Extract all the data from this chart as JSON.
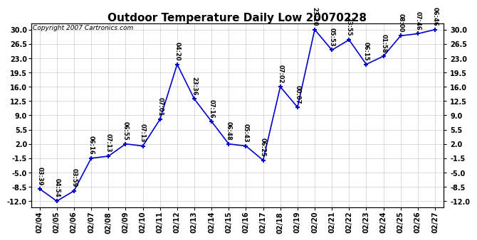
{
  "title": "Outdoor Temperature Daily Low 20070228",
  "copyright": "Copyright 2007 Cartronics.com",
  "x_labels": [
    "02/04",
    "02/05",
    "02/06",
    "02/07",
    "02/08",
    "02/09",
    "02/10",
    "02/11",
    "02/12",
    "02/13",
    "02/14",
    "02/15",
    "02/16",
    "02/17",
    "02/18",
    "02/19",
    "02/20",
    "02/21",
    "02/22",
    "02/23",
    "02/24",
    "02/25",
    "02/26",
    "02/27"
  ],
  "y_values": [
    -9.0,
    -12.0,
    -9.5,
    -1.5,
    -1.0,
    2.0,
    1.5,
    8.0,
    21.5,
    13.0,
    7.5,
    2.0,
    1.5,
    -2.0,
    16.0,
    11.0,
    30.0,
    25.0,
    27.5,
    21.5,
    23.5,
    28.5,
    29.0,
    30.0
  ],
  "point_labels": [
    "03:39",
    "04:54",
    "03:59",
    "06:16",
    "07:13",
    "06:55",
    "07:13",
    "07:01",
    "04:20",
    "23:36",
    "07:16",
    "06:48",
    "05:43",
    "06:25",
    "07:02",
    "00:07",
    "23:10",
    "05:53",
    "23:55",
    "06:15",
    "01:58",
    "08:00",
    "07:46",
    "06:46"
  ],
  "line_color": "#0000CC",
  "marker_color": "#0000CC",
  "bg_color": "#FFFFFF",
  "plot_bg_color": "#FFFFFF",
  "grid_color": "#CCCCCC",
  "ylim_min": -13.5,
  "ylim_max": 31.5,
  "yticks": [
    30.0,
    26.5,
    23.0,
    19.5,
    16.0,
    12.5,
    9.0,
    5.5,
    2.0,
    -1.5,
    -5.0,
    -8.5,
    -12.0
  ],
  "title_fontsize": 11,
  "tick_fontsize": 7,
  "label_fontsize": 7,
  "copyright_fontsize": 6.5,
  "annotation_fontsize": 6
}
